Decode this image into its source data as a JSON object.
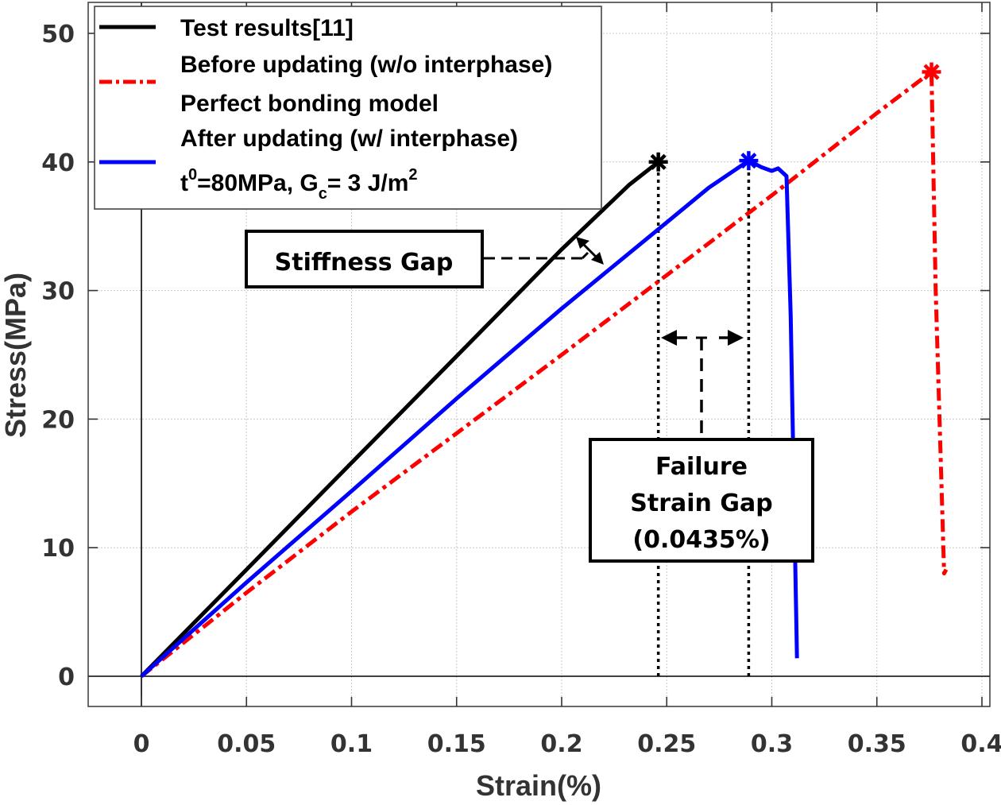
{
  "chart_data": {
    "type": "line",
    "title": "",
    "xlabel": "Strain(%)",
    "ylabel": "Stress(MPa)",
    "xlim": [
      -0.025,
      0.4
    ],
    "ylim": [
      -7.5,
      52.5
    ],
    "grid": true,
    "x_ticks": [
      0,
      0.05,
      0.1,
      0.15,
      0.2,
      0.25,
      0.3,
      0.35,
      0.4
    ],
    "x_tick_labels": [
      "0",
      "0.05",
      "0.1",
      "0.15",
      "0.2",
      "0.25",
      "0.3",
      "0.35",
      "0.4"
    ],
    "y_ticks": [
      0,
      10,
      20,
      30,
      40,
      50
    ],
    "y_tick_labels": [
      "0",
      "10",
      "20",
      "30",
      "40",
      "50"
    ],
    "legend_position": "top-left",
    "series": [
      {
        "name": "Test results[11]",
        "legend_lines": [
          "Test results[11]"
        ],
        "color": "#000000",
        "style": "solid",
        "x": [
          0,
          0.05,
          0.1,
          0.15,
          0.2,
          0.232,
          0.246
        ],
        "y": [
          0,
          8.3,
          16.6,
          24.9,
          33.2,
          38.2,
          40.0
        ],
        "failure_marker": {
          "x": 0.246,
          "y": 40.0,
          "symbol": "asterisk"
        }
      },
      {
        "name": "Before updating (w/o interphase) Perfect bonding model",
        "legend_lines": [
          "Before updating (w/o interphase)",
          "Perfect bonding model"
        ],
        "color": "#ff0000",
        "style": "dashdot",
        "x": [
          0,
          0.05,
          0.1,
          0.15,
          0.2,
          0.25,
          0.3,
          0.35,
          0.376,
          0.378,
          0.382,
          0.383
        ],
        "y": [
          0,
          6.5,
          12.8,
          18.9,
          25.0,
          31.2,
          37.4,
          43.8,
          47.0,
          30.0,
          8.0,
          8.3
        ],
        "failure_marker": {
          "x": 0.376,
          "y": 47.0,
          "symbol": "asterisk"
        }
      },
      {
        "name": "After updating (w/ interphase) t0=80MPa, Gc= 3 J/m2",
        "legend_lines": [
          "After updating (w/ interphase)",
          "t0=80MPa, Gc= 3 J/m2"
        ],
        "color": "#0000ff",
        "style": "solid",
        "x": [
          0,
          0.05,
          0.1,
          0.15,
          0.2,
          0.25,
          0.27,
          0.289,
          0.295,
          0.3,
          0.303,
          0.307,
          0.309,
          0.312
        ],
        "y": [
          0,
          7.3,
          14.4,
          21.6,
          28.6,
          35.3,
          38.0,
          40.1,
          39.6,
          39.3,
          39.5,
          38.9,
          28.0,
          1.4
        ],
        "failure_marker": {
          "x": 0.289,
          "y": 40.1,
          "symbol": "asterisk"
        }
      }
    ],
    "reference_lines": [
      {
        "type": "vertical",
        "x": 0.246,
        "style": "dotted",
        "color": "#000000",
        "y_range": [
          0,
          40
        ]
      },
      {
        "type": "vertical",
        "x": 0.289,
        "style": "dotted",
        "color": "#000000",
        "y_range": [
          0,
          40
        ]
      }
    ],
    "annotations": [
      {
        "name": "stiffness-gap",
        "lines": [
          "Stiffness Gap"
        ]
      },
      {
        "name": "failure-strain-gap",
        "lines": [
          "Failure",
          "Strain Gap",
          "(0.0435%)"
        ],
        "value_percent": 0.0435
      }
    ]
  },
  "legend": {
    "entries": [
      {
        "lines": [
          "Test results[11]"
        ]
      },
      {
        "lines": [
          "Before updating (w/o interphase)",
          "Perfect bonding model"
        ]
      },
      {
        "lines": [
          "After updating (w/ interphase)"
        ],
        "param_line": {
          "t": "t",
          "t_sup": "0",
          "mid": "=80MPa, G",
          "g_sub": "c",
          "tail": "= 3 J/m",
          "m_sup": "2"
        }
      }
    ]
  }
}
